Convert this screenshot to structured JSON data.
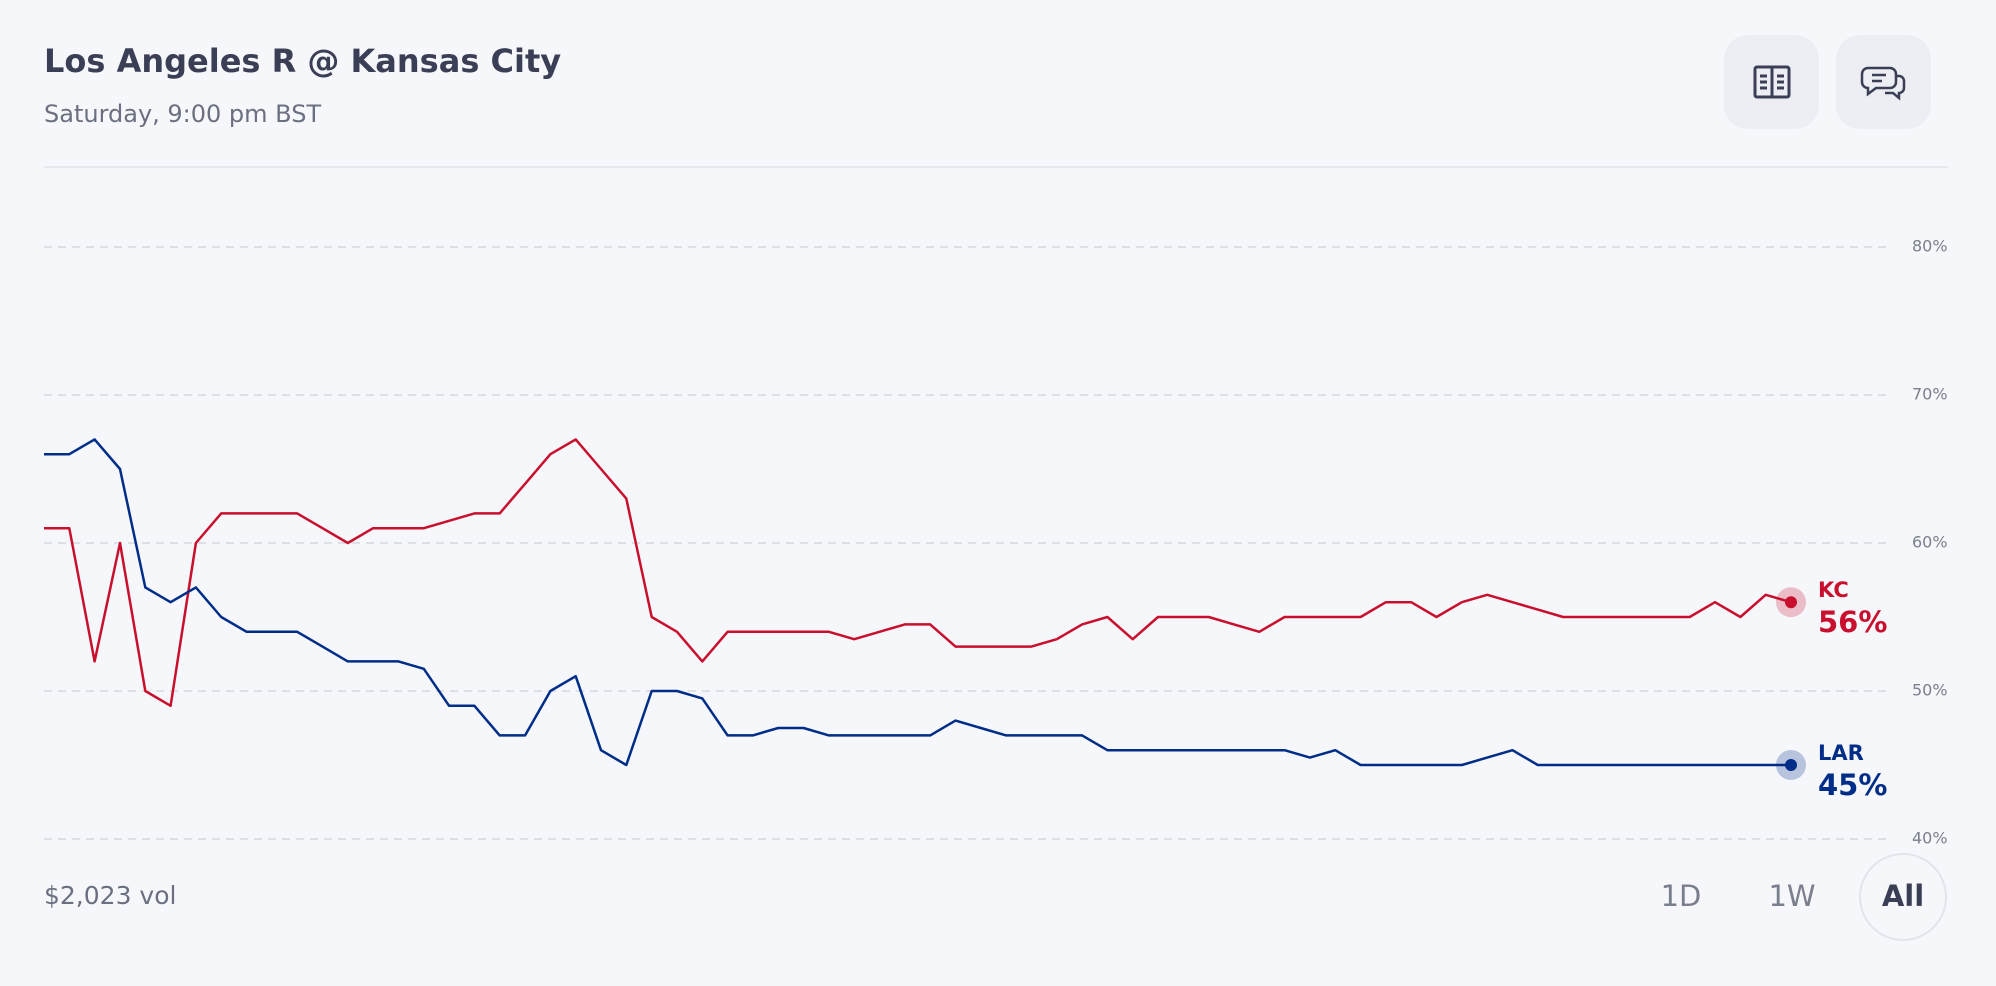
{
  "header": {
    "title": "Los Angeles R @ Kansas City",
    "subtitle": "Saturday, 9:00 pm BST"
  },
  "chart_data": {
    "type": "line",
    "ylim": [
      40,
      80
    ],
    "yticks": [
      {
        "value": 40,
        "label": "40%"
      },
      {
        "value": 50,
        "label": "50%"
      },
      {
        "value": 60,
        "label": "60%"
      },
      {
        "value": 70,
        "label": "70%"
      },
      {
        "value": 80,
        "label": "80%"
      }
    ],
    "grid": true,
    "series": [
      {
        "name": "KC",
        "color": "#c8102e",
        "values": [
          61,
          61,
          52,
          60,
          50,
          49,
          60,
          62,
          62,
          62,
          62,
          61,
          60,
          61,
          61,
          61,
          61.5,
          62,
          62,
          64,
          66,
          67,
          65,
          63,
          55,
          54,
          52,
          54,
          54,
          54,
          54,
          54,
          53.5,
          54,
          54.5,
          54.5,
          53,
          53,
          53,
          53,
          53.5,
          54.5,
          55,
          53.5,
          55,
          55,
          55,
          54.5,
          54,
          55,
          55,
          55,
          55,
          56,
          56,
          55,
          56,
          56.5,
          56,
          55.5,
          55,
          55,
          55,
          55,
          55,
          55,
          56,
          55,
          56.5,
          56
        ],
        "value_labels": [
          null,
          null,
          null,
          null,
          null,
          null,
          null,
          null,
          null,
          null,
          null,
          null,
          null,
          null,
          null,
          null,
          null,
          null,
          null,
          null,
          null,
          null,
          null,
          null,
          null,
          null,
          null,
          null,
          null,
          null,
          null,
          null,
          null,
          null,
          null,
          null,
          null,
          null,
          null,
          null,
          null,
          null,
          null,
          null,
          null,
          null,
          null,
          null,
          null,
          null,
          null,
          null,
          null,
          null,
          null,
          null,
          null,
          null,
          null,
          null,
          null,
          null,
          null,
          null,
          null,
          null,
          null,
          null,
          null,
          "56%"
        ]
      },
      {
        "name": "LAR",
        "color": "#002d87",
        "values": [
          66,
          66,
          67,
          65,
          57,
          56,
          57,
          55,
          54,
          54,
          54,
          53,
          52,
          52,
          52,
          51.5,
          49,
          49,
          47,
          47,
          50,
          51,
          46,
          45,
          50,
          50,
          49.5,
          47,
          47,
          47.5,
          47.5,
          47,
          47,
          47,
          47,
          47,
          48,
          47.5,
          47,
          47,
          47,
          47,
          46,
          46,
          46,
          46,
          46,
          46,
          46,
          46,
          45.5,
          46,
          45,
          45,
          45,
          45,
          45,
          45.5,
          46,
          45,
          45,
          45,
          45,
          45,
          45,
          45,
          45,
          45,
          45,
          45
        ],
        "value_labels": [
          null,
          null,
          null,
          null,
          null,
          null,
          null,
          null,
          null,
          null,
          null,
          null,
          null,
          null,
          null,
          null,
          null,
          null,
          null,
          null,
          null,
          null,
          null,
          null,
          null,
          null,
          null,
          null,
          null,
          null,
          null,
          null,
          null,
          null,
          null,
          null,
          null,
          null,
          null,
          null,
          null,
          null,
          null,
          null,
          null,
          null,
          null,
          null,
          null,
          null,
          null,
          null,
          null,
          null,
          null,
          null,
          null,
          null,
          null,
          null,
          null,
          null,
          null,
          null,
          null,
          null,
          null,
          null,
          null,
          "45%"
        ]
      }
    ]
  },
  "footer": {
    "volume": "$2,023 vol",
    "ranges": [
      "1D",
      "1W",
      "All"
    ]
  }
}
